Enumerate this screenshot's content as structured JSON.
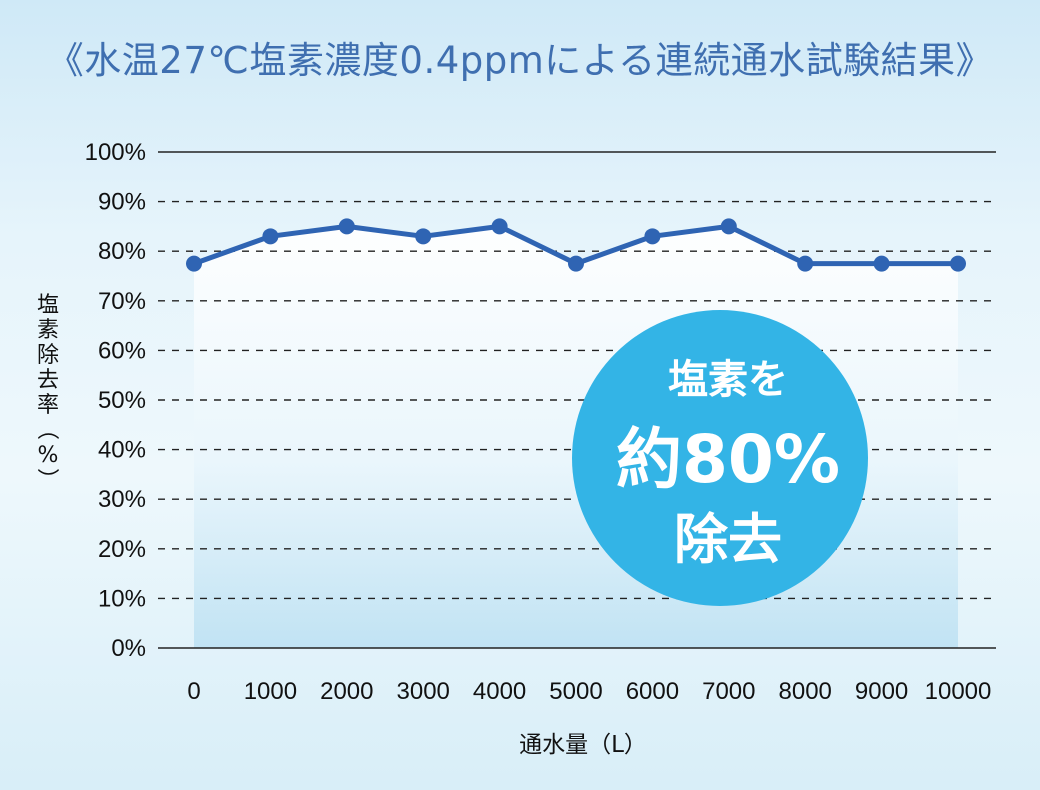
{
  "chart_data": {
    "type": "line",
    "title": "《水温27℃塩素濃度0.4ppmによる連続通水試験結果》",
    "xlabel": "通水量（L）",
    "ylabel": "塩素除去率（%）",
    "categories": [
      "0",
      "1000",
      "2000",
      "3000",
      "4000",
      "5000",
      "6000",
      "7000",
      "8000",
      "9000",
      "10000"
    ],
    "values": [
      77.5,
      83,
      85,
      83,
      85,
      77.5,
      83,
      85,
      77.5,
      77.5,
      77.5
    ],
    "y_ticks": [
      "0%",
      "10%",
      "20%",
      "30%",
      "40%",
      "50%",
      "60%",
      "70%",
      "80%",
      "90%",
      "100%"
    ],
    "ylim": [
      0,
      100
    ],
    "grid": true,
    "line_color": "#2f64b3",
    "fill_color": "#bfe2f3"
  },
  "badge": {
    "line1": "塩素を",
    "line2": "約80%",
    "line3": "除去",
    "color": "#33b4e6"
  }
}
